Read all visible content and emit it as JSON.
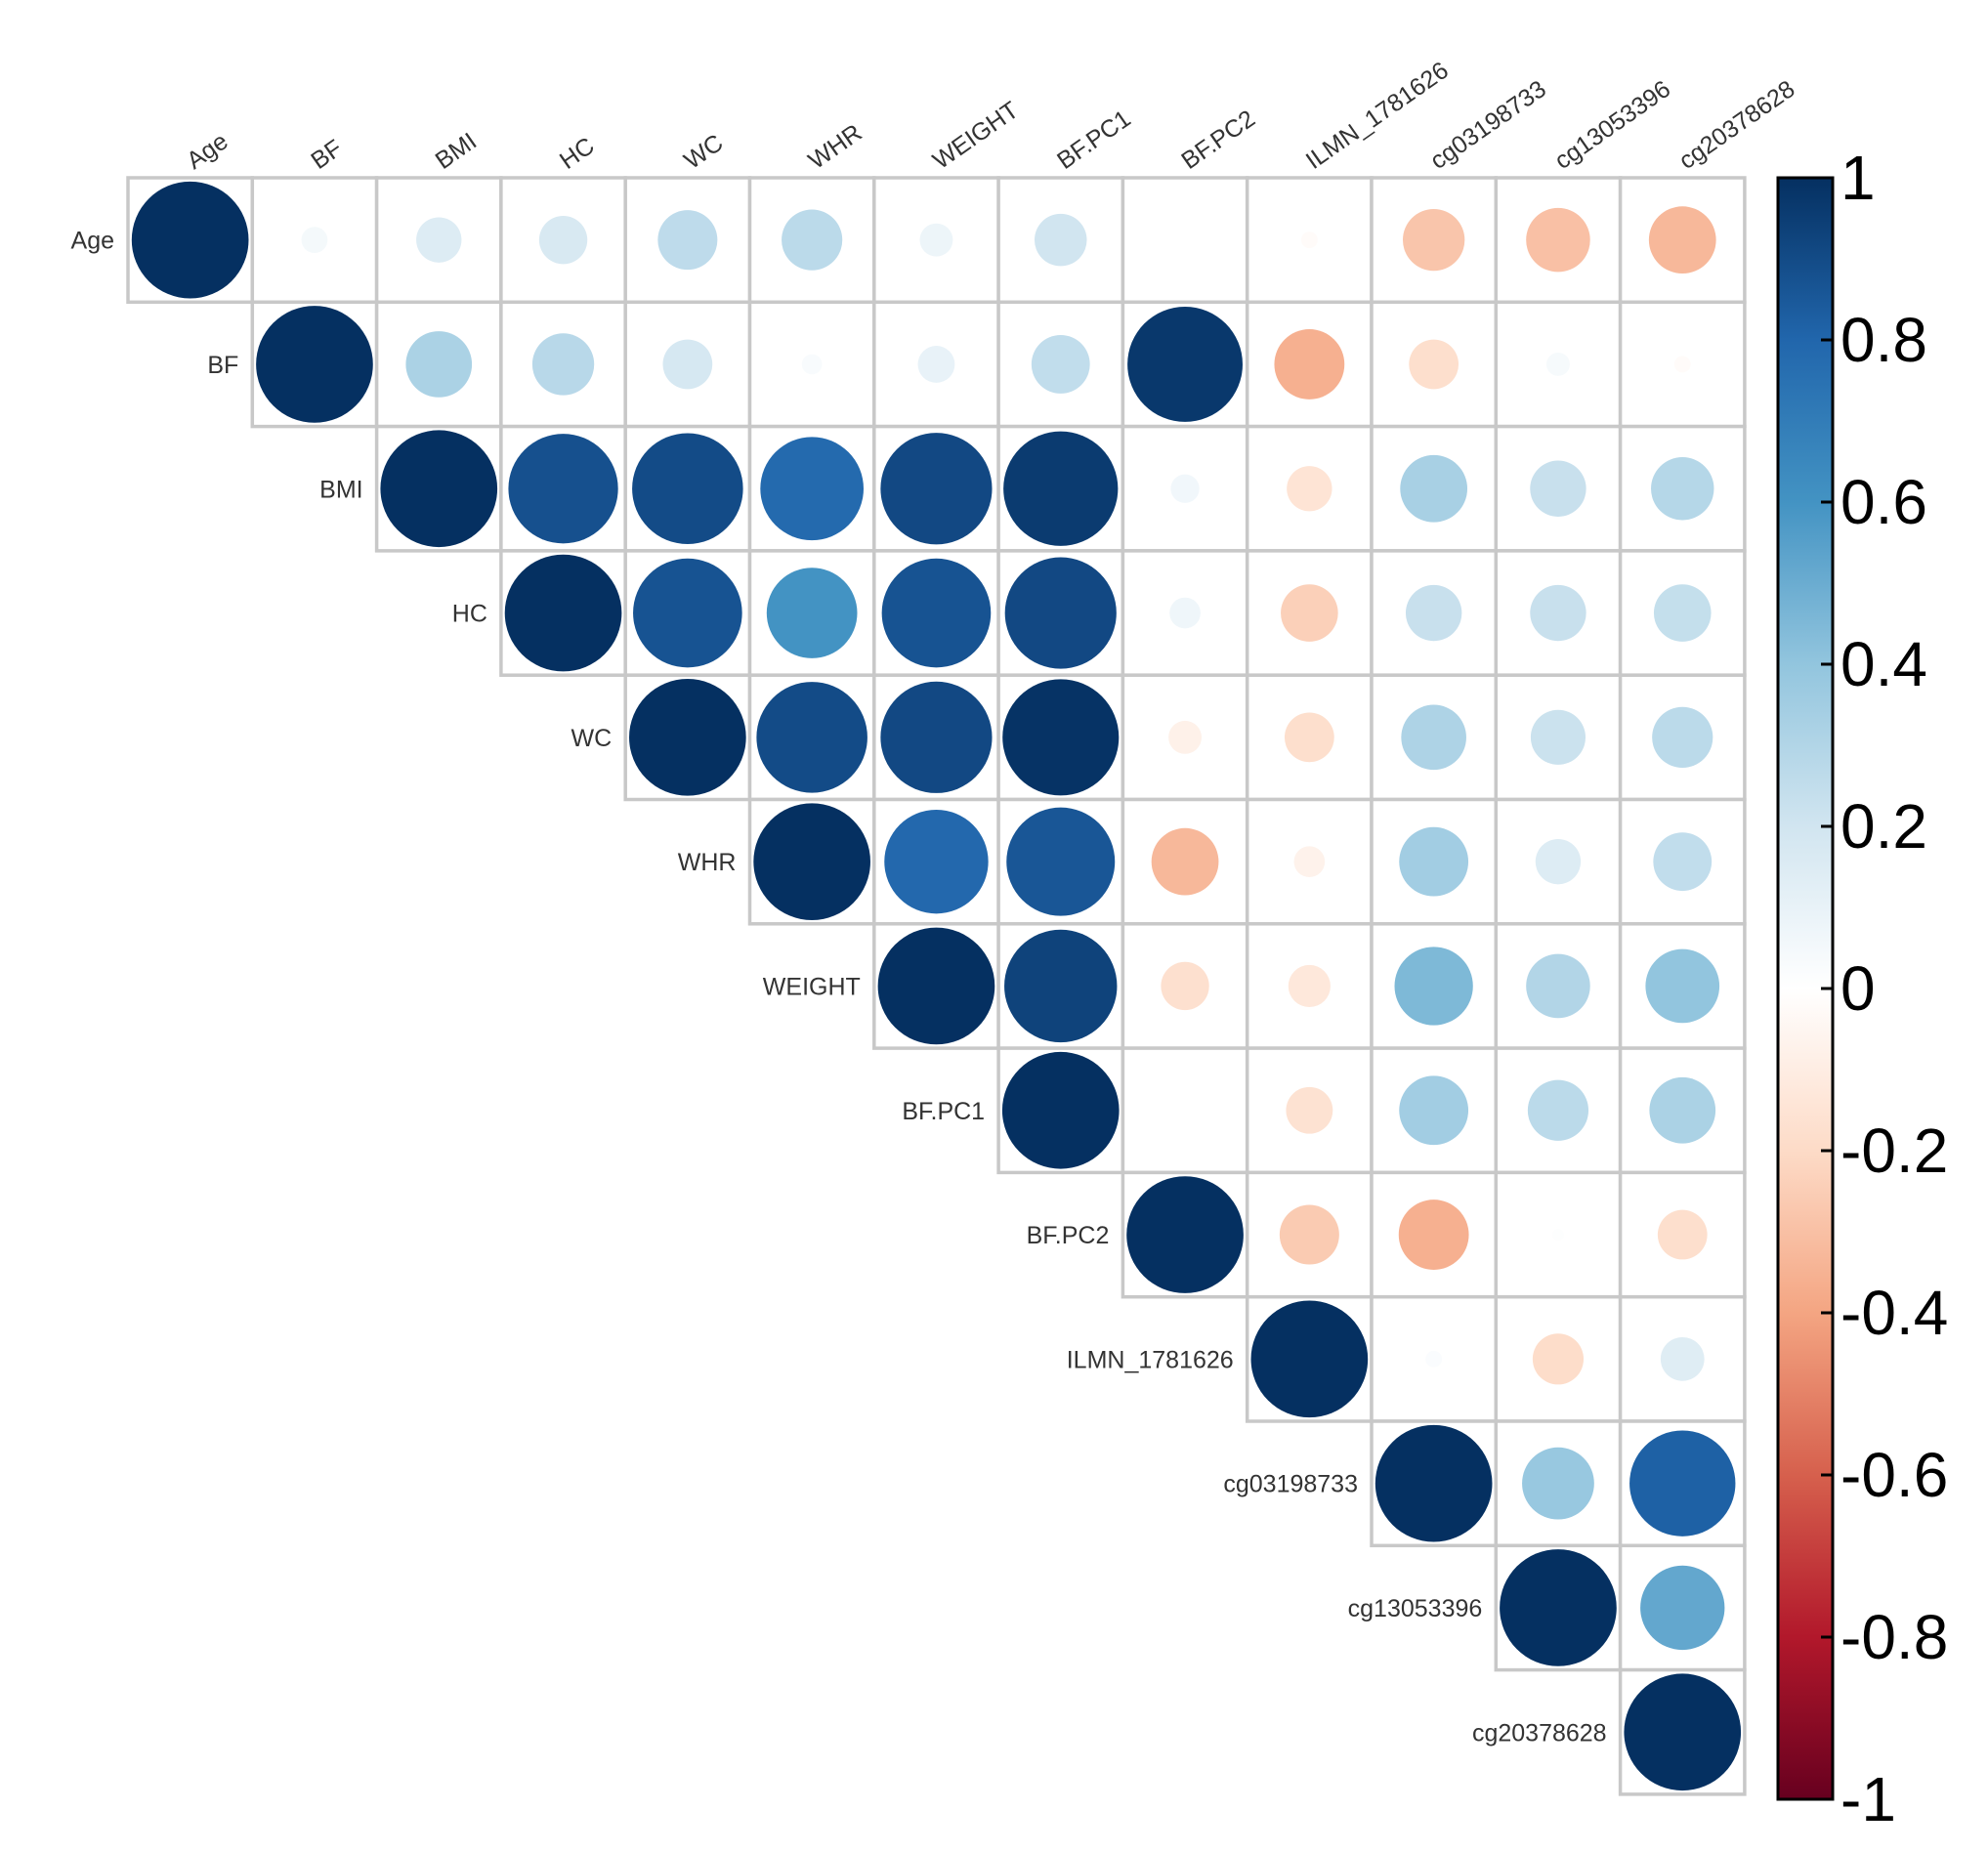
{
  "chart_data": {
    "type": "heatmap",
    "subtype": "correlation-plot-upper-triangle-circles",
    "variables": [
      "Age",
      "BF",
      "BMI",
      "HC",
      "WC",
      "WHR",
      "WEIGHT",
      "BF.PC1",
      "BF.PC2",
      "ILMN_1781626",
      "cg03198733",
      "cg13053396",
      "cg20378628"
    ],
    "matrix": [
      [
        1.0,
        0.05,
        0.15,
        0.17,
        0.26,
        0.27,
        0.08,
        0.2,
        0.0,
        -0.02,
        -0.28,
        -0.3,
        -0.33
      ],
      [
        0.05,
        1.0,
        0.32,
        0.28,
        0.18,
        0.03,
        0.1,
        0.25,
        0.97,
        -0.36,
        -0.18,
        0.04,
        -0.02
      ],
      [
        0.15,
        0.32,
        1.0,
        0.88,
        0.9,
        0.78,
        0.91,
        0.96,
        0.06,
        -0.15,
        0.33,
        0.23,
        0.29
      ],
      [
        0.17,
        0.28,
        0.88,
        1.0,
        0.87,
        0.6,
        0.87,
        0.91,
        0.07,
        -0.24,
        0.23,
        0.23,
        0.24
      ],
      [
        0.26,
        0.18,
        0.9,
        0.87,
        1.0,
        0.9,
        0.91,
        0.99,
        -0.08,
        -0.18,
        0.31,
        0.22,
        0.27
      ],
      [
        0.27,
        0.03,
        0.78,
        0.6,
        0.9,
        1.0,
        0.79,
        0.86,
        -0.33,
        -0.07,
        0.35,
        0.15,
        0.25
      ],
      [
        0.08,
        0.1,
        0.91,
        0.87,
        0.91,
        0.79,
        1.0,
        0.93,
        -0.17,
        -0.13,
        0.45,
        0.3,
        0.4
      ],
      [
        0.2,
        0.25,
        0.96,
        0.91,
        0.99,
        0.86,
        0.93,
        1.0,
        0.0,
        -0.16,
        0.35,
        0.27,
        0.32
      ],
      [
        0.0,
        0.97,
        0.06,
        0.07,
        -0.08,
        -0.33,
        -0.17,
        0.0,
        1.0,
        -0.26,
        -0.36,
        0.01,
        -0.18
      ],
      [
        -0.02,
        -0.36,
        -0.15,
        -0.24,
        -0.18,
        -0.07,
        -0.13,
        -0.16,
        -0.26,
        1.0,
        0.02,
        -0.19,
        0.14
      ],
      [
        -0.28,
        -0.18,
        0.33,
        0.23,
        0.31,
        0.35,
        0.45,
        0.35,
        -0.36,
        0.02,
        1.0,
        0.38,
        0.82
      ],
      [
        -0.3,
        0.04,
        0.23,
        0.23,
        0.22,
        0.15,
        0.3,
        0.27,
        0.01,
        -0.19,
        0.38,
        1.0,
        0.52
      ],
      [
        -0.33,
        -0.02,
        0.29,
        0.24,
        0.27,
        0.25,
        0.4,
        0.32,
        -0.18,
        0.14,
        0.82,
        0.52,
        1.0
      ]
    ],
    "display": "upper",
    "colorbar": {
      "ticks": [
        "1",
        "0.8",
        "0.6",
        "0.4",
        "0.2",
        "0",
        "-0.2",
        "-0.4",
        "-0.6",
        "-0.8",
        "-1"
      ],
      "range": [
        -1,
        1
      ],
      "colors": [
        "#67001f",
        "#b2182b",
        "#d6604d",
        "#f4a582",
        "#fddbc7",
        "#ffffff",
        "#d1e5f0",
        "#92c5de",
        "#4393c3",
        "#2166ac",
        "#053061"
      ]
    },
    "title": "",
    "xlabel": "",
    "ylabel": ""
  }
}
